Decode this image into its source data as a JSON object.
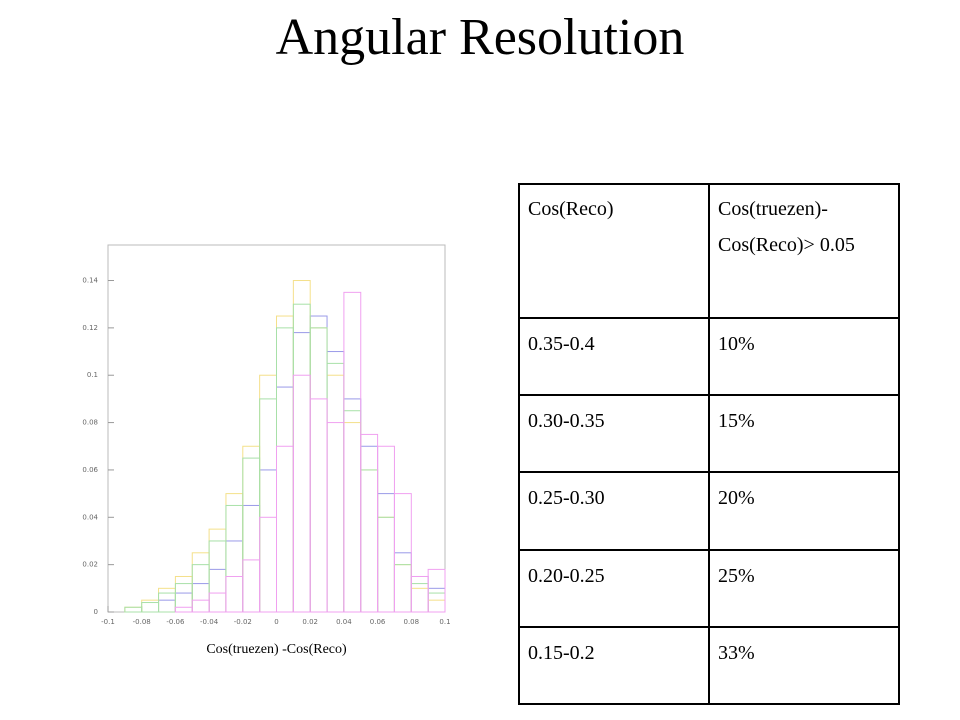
{
  "title": "Angular Resolution",
  "chart_data": {
    "type": "histogram",
    "xlabel": "Cos(truezen) -Cos(Reco)",
    "bins": [
      -0.1,
      -0.09,
      -0.08,
      -0.07,
      -0.06,
      -0.05,
      -0.04,
      -0.03,
      -0.02,
      -0.01,
      0,
      0.01,
      0.02,
      0.03,
      0.04,
      0.05,
      0.06,
      0.07,
      0.08,
      0.09,
      0.1
    ],
    "series": [
      {
        "color": "#9a9ae8",
        "values": [
          0,
          0,
          0,
          0.005,
          0.008,
          0.012,
          0.018,
          0.03,
          0.045,
          0.06,
          0.095,
          0.118,
          0.125,
          0.11,
          0.09,
          0.07,
          0.05,
          0.025,
          0.015,
          0.01
        ]
      },
      {
        "color": "#f4e08a",
        "values": [
          0,
          0.002,
          0.005,
          0.01,
          0.015,
          0.025,
          0.035,
          0.05,
          0.07,
          0.1,
          0.125,
          0.14,
          0.12,
          0.1,
          0.08,
          0.06,
          0.04,
          0.02,
          0.01,
          0.005
        ]
      },
      {
        "color": "#a8e0a8",
        "values": [
          0,
          0.002,
          0.004,
          0.008,
          0.012,
          0.02,
          0.03,
          0.045,
          0.065,
          0.09,
          0.12,
          0.13,
          0.12,
          0.105,
          0.085,
          0.06,
          0.04,
          0.02,
          0.012,
          0.008
        ]
      },
      {
        "color": "#f0a0f0",
        "values": [
          0,
          0,
          0,
          0,
          0.002,
          0.005,
          0.008,
          0.015,
          0.022,
          0.04,
          0.07,
          0.1,
          0.09,
          0.08,
          0.135,
          0.075,
          0.07,
          0.05,
          0.015,
          0.018
        ]
      }
    ],
    "xlim": [
      -0.1,
      0.1
    ],
    "xticks": [
      -0.1,
      -0.08,
      -0.06,
      -0.04,
      -0.02,
      0,
      0.02,
      0.04,
      0.06,
      0.08,
      0.1
    ],
    "ylim": [
      0,
      0.155
    ],
    "yticks": [
      0,
      0.02,
      0.04,
      0.06,
      0.08,
      0.1,
      0.12,
      0.14
    ]
  },
  "table": {
    "header": [
      "Cos(Reco)",
      "Cos(truezen)-Cos(Reco)> 0.05"
    ],
    "rows": [
      [
        "0.35-0.4",
        "10%"
      ],
      [
        "0.30-0.35",
        "15%"
      ],
      [
        "0.25-0.30",
        "20%"
      ],
      [
        "0.20-0.25",
        "25%"
      ],
      [
        "0.15-0.2",
        "33%"
      ]
    ]
  }
}
